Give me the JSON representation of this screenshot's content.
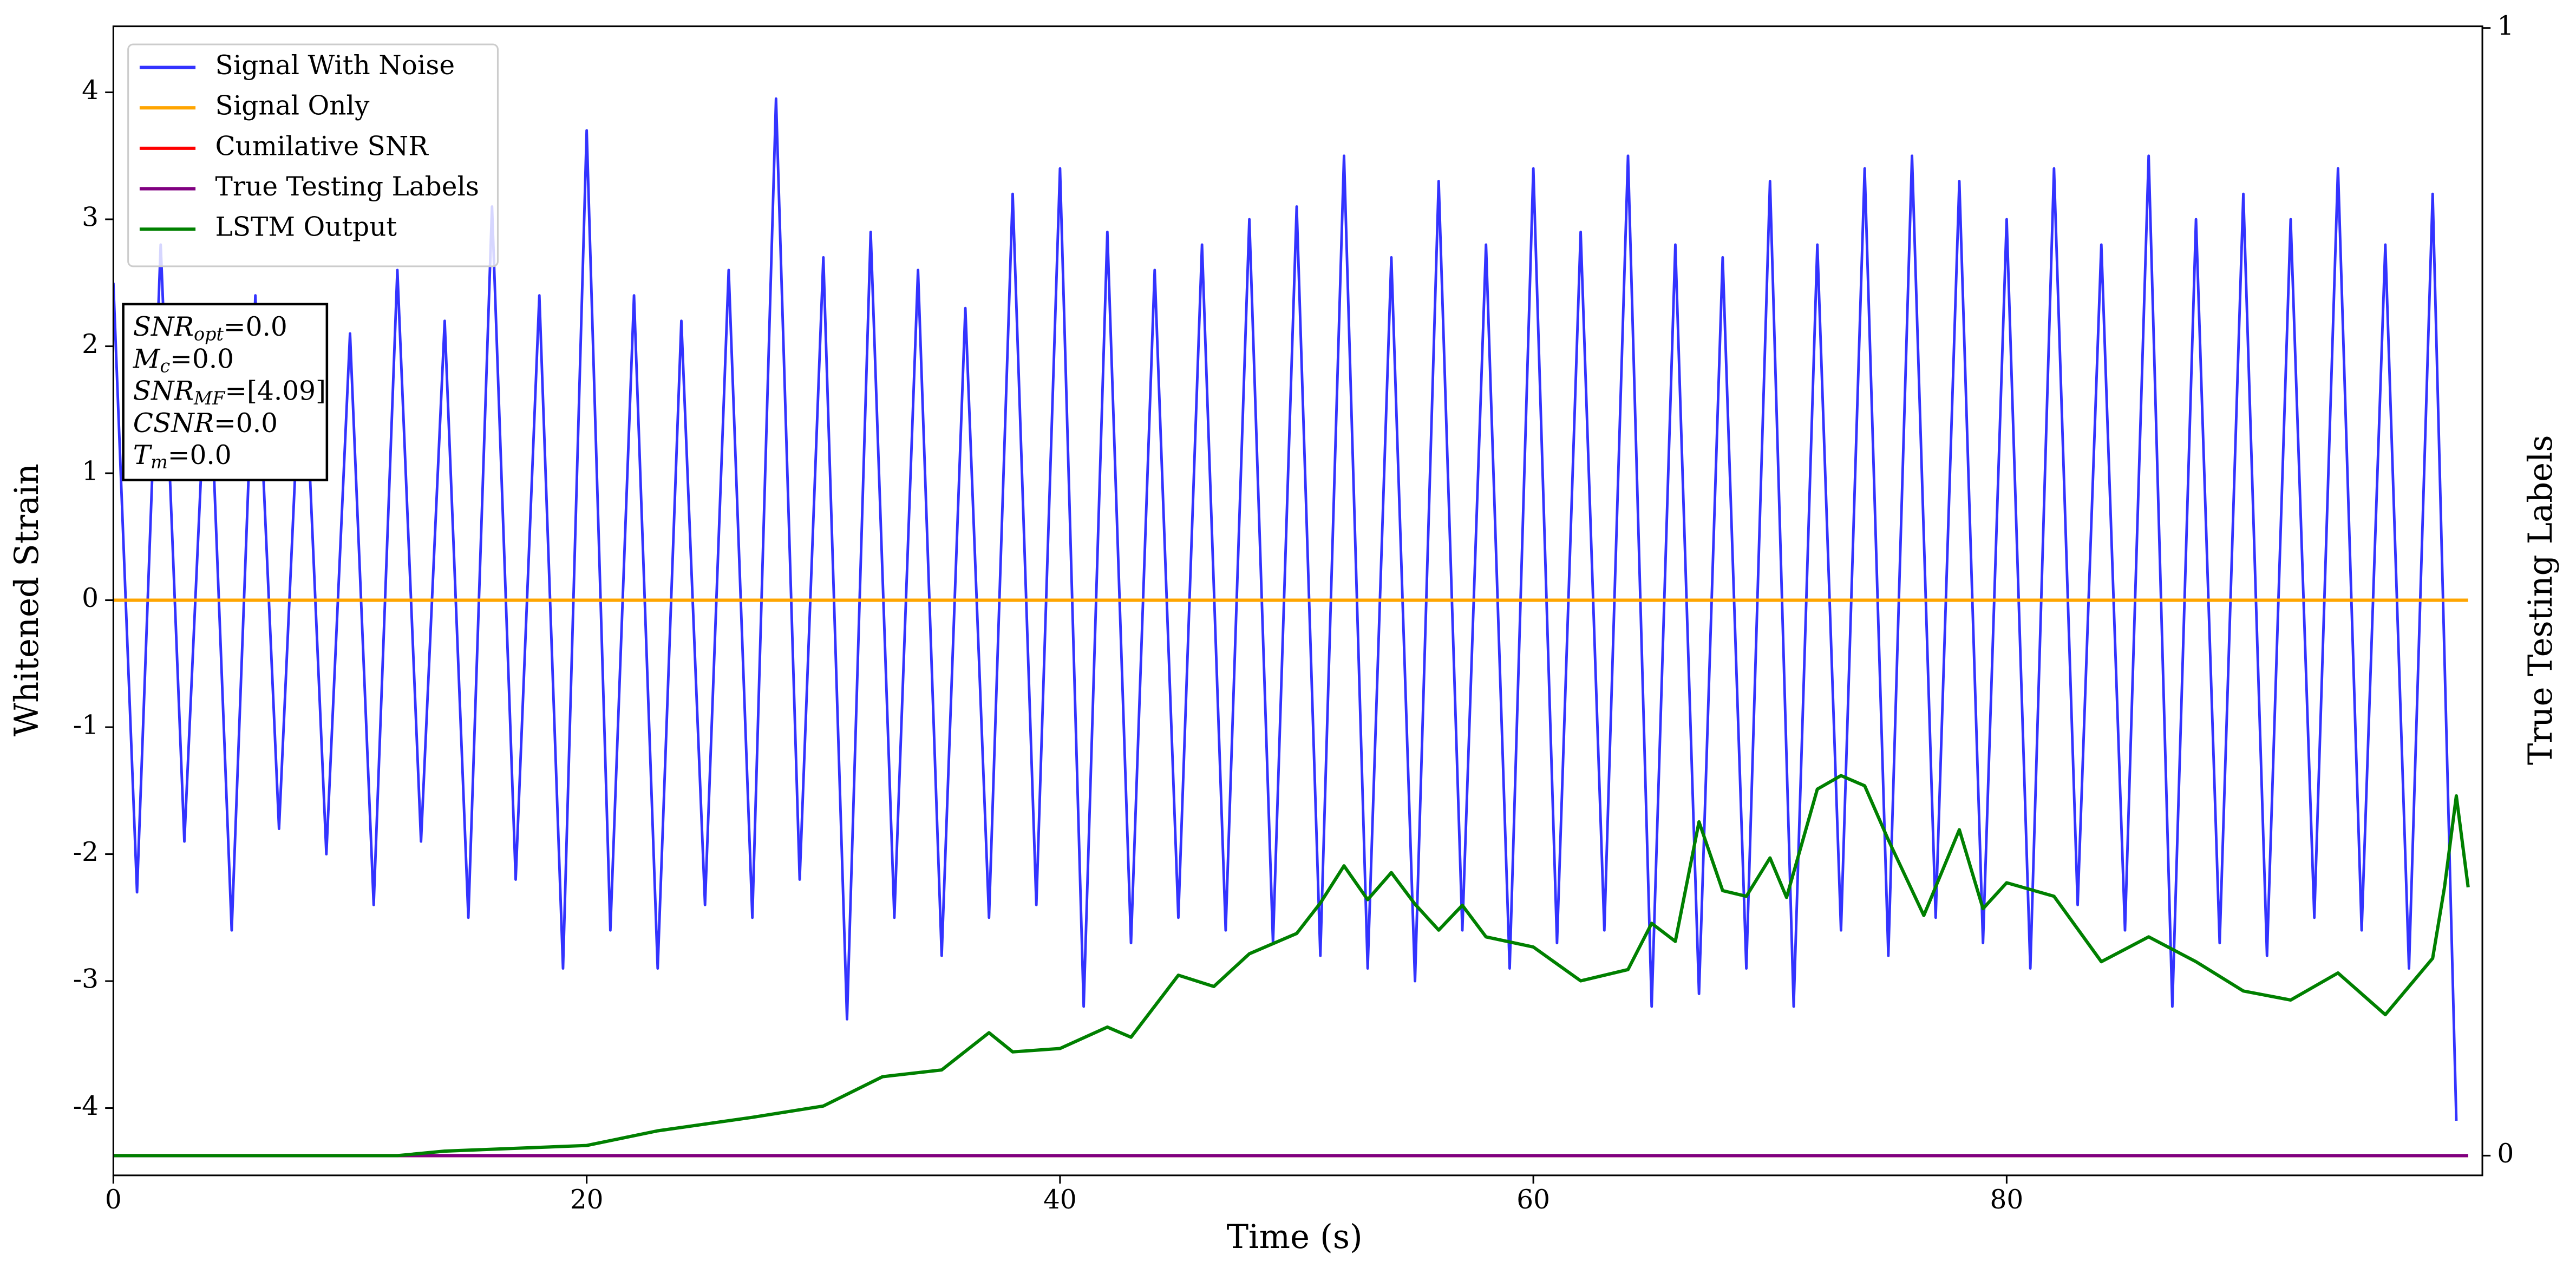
{
  "chart_data": {
    "type": "line",
    "xlabel": "Time (s)",
    "ylabel": "Whitened Strain",
    "y2label": "True Testing Labels",
    "xlim": [
      0,
      100.1
    ],
    "xticks": [
      0,
      20,
      40,
      60,
      80
    ],
    "ylim": [
      -4.53,
      4.52
    ],
    "yticks": [
      -4,
      -3,
      -2,
      -1,
      0,
      1,
      2,
      3,
      4
    ],
    "y2lim": [
      -0.0175,
      1.0015
    ],
    "y2ticks": [
      0,
      1
    ],
    "legend": "upper left",
    "series": [
      {
        "name": "Signal With Noise",
        "color": "#3333ff",
        "x": [
          0,
          1,
          2,
          3,
          4,
          5,
          6,
          7,
          8,
          9,
          10,
          11,
          12,
          13,
          14,
          15,
          16,
          17,
          18,
          19,
          20,
          21,
          22,
          23,
          24,
          25,
          26,
          27,
          28,
          29,
          30,
          31,
          32,
          33,
          34,
          35,
          36,
          37,
          38,
          39,
          40,
          41,
          42,
          43,
          44,
          45,
          46,
          47,
          48,
          49,
          50,
          51,
          52,
          53,
          54,
          55,
          56,
          57,
          58,
          59,
          60,
          61,
          62,
          63,
          64,
          65,
          66,
          67,
          68,
          69,
          70,
          71,
          72,
          73,
          74,
          75,
          76,
          77,
          78,
          79,
          80,
          81,
          82,
          83,
          84,
          85,
          86,
          87,
          88,
          89,
          90,
          91,
          92,
          93,
          94,
          95,
          96,
          97,
          98,
          99
        ],
        "values": [
          2.5,
          -2.3,
          2.8,
          -1.9,
          2.2,
          -2.6,
          2.4,
          -1.8,
          2.3,
          -2.0,
          2.1,
          -2.4,
          2.6,
          -1.9,
          2.2,
          -2.5,
          3.1,
          -2.2,
          2.4,
          -2.9,
          3.7,
          -2.6,
          2.4,
          -2.9,
          2.2,
          -2.4,
          2.6,
          -2.5,
          3.95,
          -2.2,
          2.7,
          -3.3,
          2.9,
          -2.5,
          2.6,
          -2.8,
          2.3,
          -2.5,
          3.2,
          -2.4,
          3.4,
          -3.2,
          2.9,
          -2.7,
          2.6,
          -2.5,
          2.8,
          -2.6,
          3.0,
          -2.7,
          3.1,
          -2.8,
          3.5,
          -2.9,
          2.7,
          -3.0,
          3.3,
          -2.6,
          2.8,
          -2.9,
          3.4,
          -2.7,
          2.9,
          -2.6,
          3.5,
          -3.2,
          2.8,
          -3.1,
          2.7,
          -2.9,
          3.3,
          -3.2,
          2.8,
          -2.6,
          3.4,
          -2.8,
          3.5,
          -2.5,
          3.3,
          -2.7,
          3.0,
          -2.9,
          3.4,
          -2.4,
          2.8,
          -2.6,
          3.5,
          -3.2,
          3.0,
          -2.7,
          3.2,
          -2.8,
          3.0,
          -2.5,
          3.4,
          -2.6,
          2.8,
          -2.9,
          3.2,
          -4.1
        ]
      },
      {
        "name": "Signal Only",
        "color": "#ffa500",
        "x": [
          0,
          99.5
        ],
        "values": [
          0,
          0
        ]
      },
      {
        "name": "Cumilative SNR",
        "color": "#ff0000",
        "axis": "y2",
        "x": [
          0,
          99.5
        ],
        "values": [
          0,
          0
        ]
      },
      {
        "name": "True Testing Labels",
        "color": "#800080",
        "axis": "y2",
        "x": [
          0,
          99.5
        ],
        "values": [
          0,
          0
        ]
      },
      {
        "name": "LSTM Output",
        "color": "#008000",
        "axis": "y2",
        "x": [
          0,
          12,
          14,
          20,
          23,
          27,
          30,
          32.5,
          35,
          37,
          38,
          40,
          42,
          43,
          45,
          46.5,
          48,
          50,
          51,
          52,
          53,
          54,
          55,
          56,
          57,
          58,
          60,
          62,
          64,
          65,
          66,
          67,
          68,
          69,
          70,
          70.7,
          72,
          73,
          74,
          75,
          76.5,
          78,
          79,
          80,
          82,
          84,
          86,
          88,
          90,
          92,
          94,
          96,
          98,
          98.5,
          99,
          99.5
        ],
        "values": [
          0,
          0,
          0.004,
          0.009,
          0.022,
          0.034,
          0.044,
          0.07,
          0.076,
          0.109,
          0.092,
          0.095,
          0.114,
          0.105,
          0.16,
          0.15,
          0.179,
          0.197,
          0.224,
          0.257,
          0.227,
          0.251,
          0.223,
          0.2,
          0.222,
          0.194,
          0.185,
          0.155,
          0.165,
          0.206,
          0.19,
          0.296,
          0.235,
          0.23,
          0.264,
          0.229,
          0.325,
          0.337,
          0.328,
          0.28,
          0.213,
          0.289,
          0.219,
          0.242,
          0.23,
          0.172,
          0.194,
          0.172,
          0.146,
          0.138,
          0.162,
          0.125,
          0.175,
          0.238,
          0.319,
          0.238
        ]
      }
    ],
    "annotation": [
      {
        "main": "SNR",
        "sub": "opt",
        "rest": "=0.0"
      },
      {
        "main": "M",
        "sub": "c",
        "rest": "=0.0"
      },
      {
        "main": "SNR",
        "sub": "MF",
        "rest": "=[4.09]"
      },
      {
        "main": "CSNR",
        "rest": "=0.0"
      },
      {
        "main": "T",
        "sub": "m",
        "rest": "=0.0"
      }
    ]
  }
}
